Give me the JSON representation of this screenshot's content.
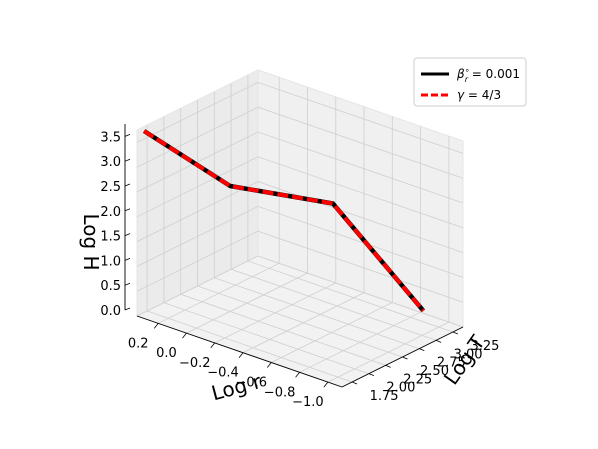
{
  "chart_data": {
    "type": "line",
    "projection": "3d",
    "xlabel": "Log r",
    "ylabel": "Log T",
    "zlabel": "Log H",
    "xlim": [
      -1.1,
      0.35
    ],
    "ylim": [
      1.6,
      3.4
    ],
    "zlim": [
      0,
      3.75
    ],
    "xticks": [
      "0.2",
      "0.0",
      "−0.2",
      "−0.4",
      "−0.6",
      "−0.8",
      "−1.0"
    ],
    "yticks": [
      "1.75",
      "2.00",
      "2.25",
      "2.50",
      "2.75",
      "3.00",
      "3.25"
    ],
    "zticks": [
      "0.0",
      "0.5",
      "1.0",
      "1.5",
      "2.0",
      "2.5",
      "3.0",
      "3.5"
    ],
    "grid": true,
    "legend_position": "top-right",
    "series": [
      {
        "name": "β′r = 0.001",
        "color": "#000000",
        "style": "solid",
        "points": [
          {
            "x": 0.3,
            "y": 1.6,
            "z": 3.78
          },
          {
            "x": -0.3,
            "y": 1.62,
            "z": 3.25
          },
          {
            "x": -0.75,
            "y": 2.2,
            "z": 2.95
          },
          {
            "x": -0.82,
            "y": 3.4,
            "z": 0.05
          }
        ]
      },
      {
        "name": "γ = 4/3",
        "color": "#ff0000",
        "style": "dashed",
        "points": [
          {
            "x": 0.3,
            "y": 1.6,
            "z": 3.78
          },
          {
            "x": -0.3,
            "y": 1.62,
            "z": 3.25
          },
          {
            "x": -0.75,
            "y": 2.2,
            "z": 2.95
          },
          {
            "x": -0.82,
            "y": 3.4,
            "z": 0.05
          }
        ]
      }
    ],
    "legend": [
      {
        "symbol": "β",
        "superscript": "∘",
        "subscript": "r",
        "rest": " = 0.001",
        "color": "#000000",
        "style": "solid"
      },
      {
        "symbol": "γ",
        "superscript": "",
        "subscript": "",
        "rest": " = 4/3",
        "color": "#ff0000",
        "style": "dashed"
      }
    ]
  }
}
